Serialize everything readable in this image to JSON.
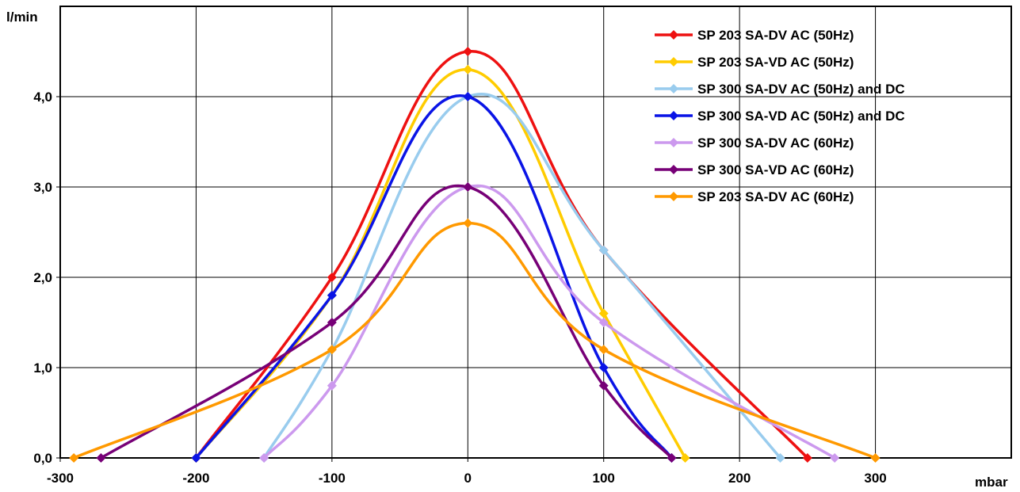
{
  "chart_data": {
    "type": "line",
    "title": "",
    "xlabel": "mbar",
    "ylabel": "l/min",
    "xlim": [
      -300,
      400
    ],
    "ylim": [
      0,
      5
    ],
    "x_ticks": [
      -300,
      -200,
      -100,
      0,
      100,
      200,
      300
    ],
    "x_tick_labels": [
      "-300",
      "-200",
      "-100",
      "0",
      "100",
      "200",
      "300"
    ],
    "y_ticks": [
      0,
      1,
      2,
      3,
      4
    ],
    "y_tick_labels": [
      "0,0",
      "1,0",
      "2,0",
      "3,0",
      "4,0"
    ],
    "grid": true,
    "legend_position": "top-right",
    "series": [
      {
        "name": "SP 203 SA-DV AC (50Hz)",
        "color": "#ee1111",
        "points": [
          [
            -200,
            0
          ],
          [
            -100,
            2.0
          ],
          [
            0,
            4.5
          ],
          [
            100,
            2.3
          ],
          [
            250,
            0
          ]
        ]
      },
      {
        "name": "SP 203 SA-VD AC (50Hz)",
        "color": "#ffcc00",
        "points": [
          [
            -200,
            0
          ],
          [
            -100,
            1.8
          ],
          [
            0,
            4.3
          ],
          [
            100,
            1.6
          ],
          [
            160,
            0
          ]
        ]
      },
      {
        "name": "SP 300 SA-DV AC (50Hz) and DC",
        "color": "#99ccee",
        "points": [
          [
            -150,
            0
          ],
          [
            -100,
            1.2
          ],
          [
            0,
            4.0
          ],
          [
            100,
            2.3
          ],
          [
            230,
            0
          ]
        ]
      },
      {
        "name": "SP 300 SA-VD AC (50Hz) and DC",
        "color": "#0a14e6",
        "points": [
          [
            -200,
            0
          ],
          [
            -100,
            1.8
          ],
          [
            0,
            4.0
          ],
          [
            100,
            1.0
          ],
          [
            150,
            0
          ]
        ]
      },
      {
        "name": "SP 300 SA-DV AC (60Hz)",
        "color": "#cc99ee",
        "points": [
          [
            -150,
            0
          ],
          [
            -100,
            0.8
          ],
          [
            0,
            3.0
          ],
          [
            100,
            1.5
          ],
          [
            270,
            0
          ]
        ]
      },
      {
        "name": "SP 300 SA-VD AC (60Hz)",
        "color": "#770077",
        "points": [
          [
            -270,
            0
          ],
          [
            -100,
            1.5
          ],
          [
            0,
            3.0
          ],
          [
            100,
            0.8
          ],
          [
            150,
            0
          ]
        ]
      },
      {
        "name": "SP 203 SA-DV AC (60Hz)",
        "color": "#ff9900",
        "points": [
          [
            -290,
            0
          ],
          [
            -100,
            1.2
          ],
          [
            0,
            2.6
          ],
          [
            100,
            1.2
          ],
          [
            300,
            0
          ]
        ]
      }
    ]
  }
}
